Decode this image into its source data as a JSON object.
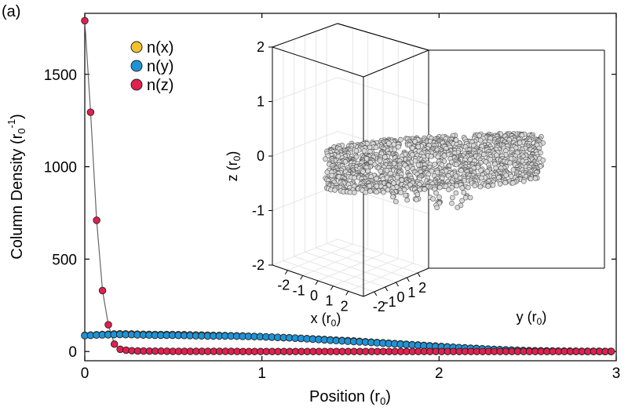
{
  "panel_label": "(a)",
  "chart_data": [
    {
      "type": "scatter",
      "title": "",
      "xlabel": "Position (r₀)",
      "ylabel": "Column Density (r₀⁻¹)",
      "xlim": [
        0,
        3
      ],
      "ylim": [
        -50,
        1830
      ],
      "xticks": [
        0,
        1,
        2,
        3
      ],
      "yticks": [
        0,
        500,
        1000,
        1500
      ],
      "grid": false,
      "legend_position": "top-left",
      "colors": {
        "n(x)": "#f2c12e",
        "n(y)": "#1f93d6",
        "n(z)": "#e0204f",
        "line": "#666666",
        "edge": "#222222"
      },
      "series": [
        {
          "name": "n(x)",
          "x": [
            0,
            0.1,
            0.2,
            0.3,
            0.4,
            0.5,
            0.6,
            0.7,
            0.8,
            0.9,
            1.0,
            1.1,
            1.2,
            1.3,
            1.4,
            1.5,
            1.6,
            1.7,
            1.8,
            1.9,
            2.0,
            2.1,
            2.2,
            2.3,
            2.4,
            2.5,
            2.6,
            2.7,
            2.8,
            2.9,
            3.0
          ],
          "y": [
            88,
            92,
            96,
            94,
            92,
            92,
            90,
            88,
            86,
            84,
            80,
            76,
            72,
            68,
            62,
            58,
            52,
            46,
            40,
            34,
            28,
            22,
            17,
            12,
            8,
            5,
            3,
            2,
            1,
            1,
            0
          ]
        },
        {
          "name": "n(y)",
          "x": [
            0,
            0.1,
            0.2,
            0.3,
            0.4,
            0.5,
            0.6,
            0.7,
            0.8,
            0.9,
            1.0,
            1.1,
            1.2,
            1.3,
            1.4,
            1.5,
            1.6,
            1.7,
            1.8,
            1.9,
            2.0,
            2.1,
            2.2,
            2.3,
            2.4,
            2.5,
            2.6,
            2.7,
            2.8,
            2.9,
            3.0
          ],
          "y": [
            86,
            90,
            92,
            90,
            88,
            88,
            86,
            84,
            84,
            82,
            80,
            76,
            72,
            66,
            60,
            55,
            50,
            44,
            38,
            32,
            26,
            21,
            16,
            11,
            7,
            4,
            3,
            2,
            1,
            1,
            0
          ]
        },
        {
          "name": "n(z)",
          "x": [
            0,
            0.033,
            0.067,
            0.1,
            0.133,
            0.167,
            0.2,
            0.25,
            0.3,
            0.4,
            0.5,
            0.6,
            0.7,
            0.8,
            0.9,
            1.0,
            1.1,
            1.2,
            1.3,
            1.4,
            1.5,
            1.6,
            1.7,
            1.8,
            1.9,
            2.0,
            2.1,
            2.2,
            2.3,
            2.4,
            2.5,
            2.6,
            2.7,
            2.8,
            2.9,
            3.0
          ],
          "y": [
            1790,
            1295,
            710,
            330,
            145,
            40,
            12,
            5,
            3,
            2,
            1,
            1,
            1,
            1,
            0,
            0,
            0,
            0,
            0,
            0,
            0,
            0,
            0,
            0,
            0,
            0,
            0,
            0,
            0,
            0,
            0,
            0,
            0,
            0,
            0,
            0
          ]
        }
      ]
    },
    {
      "type": "scatter",
      "title": "",
      "xlabel": "x (r₀)",
      "ylabel": "y (r₀)",
      "zlabel": "z (r₀)",
      "xticks": [
        -2,
        -1,
        0,
        1,
        2
      ],
      "yticks": [
        -2,
        -1,
        0,
        1,
        2
      ],
      "zticks": [
        -2,
        -1,
        0,
        1,
        2
      ],
      "xlim": [
        -3,
        3
      ],
      "ylim": [
        -3,
        3
      ],
      "zlim": [
        -2,
        2
      ],
      "grid": true,
      "description": "Flattened cloud of points spread over roughly x in [-2.5, 2.5], y in [-2.5, 2.5], z in [-0.9, 0.6]",
      "point_color": "#d9d9d9"
    }
  ]
}
